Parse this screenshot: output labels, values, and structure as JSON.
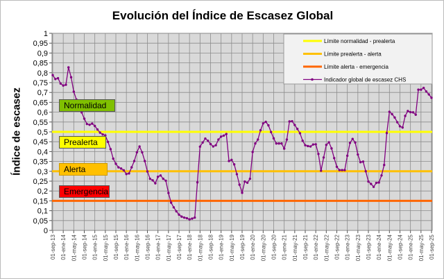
{
  "chart_data": {
    "type": "line",
    "title": "Evolución del Índice de Escasez Global",
    "ylabel": "Índice de escasez",
    "xlabel": "",
    "ylim": [
      0,
      1
    ],
    "yticks": [
      "0",
      "0,05",
      "0,1",
      "0,15",
      "0,2",
      "0,25",
      "0,3",
      "0,35",
      "0,4",
      "0,45",
      "0,5",
      "0,55",
      "0,6",
      "0,65",
      "0,7",
      "0,75",
      "0,8",
      "0,85",
      "0,9",
      "0,95",
      "1"
    ],
    "xticks": [
      "01-sep-13",
      "01-ene-14",
      "01-may-14",
      "01-sep-14",
      "01-ene-15",
      "01-may-15",
      "01-sep-15",
      "01-ene-16",
      "01-may-16",
      "01-sep-16",
      "01-ene-17",
      "01-may-17",
      "01-sep-17",
      "01-ene-18",
      "01-may-18",
      "01-sep-18",
      "01-ene-19",
      "01-may-19",
      "01-sep-19",
      "01-ene-20",
      "01-may-20",
      "01-sep-20",
      "01-ene-21",
      "01-may-21",
      "01-sep-21",
      "01-ene-22",
      "01-may-22",
      "01-sep-22",
      "01-ene-23",
      "01-may-23",
      "01-sep-23",
      "01-ene-24",
      "01-may-24",
      "01-sep-24",
      "01-ene-25",
      "01-may-25",
      "01-sep-25"
    ],
    "x_start": "2013-09",
    "x_frequency": "monthly",
    "grid": true,
    "legend_placement": "top-right",
    "thresholds": [
      {
        "name": "Límite normalidad - prealerta",
        "value": 0.5,
        "color": "#ffff00"
      },
      {
        "name": "Límite prealerta - alerta",
        "value": 0.3,
        "color": "#ffc000"
      },
      {
        "name": "Límite alerta - emergencia",
        "value": 0.15,
        "color": "#ff6600"
      }
    ],
    "series": [
      {
        "name": "Indicador global de escasez CHS",
        "color": "#800080",
        "values": [
          0.788,
          0.768,
          0.772,
          0.745,
          0.735,
          0.739,
          0.827,
          0.777,
          0.704,
          0.664,
          0.63,
          0.599,
          0.567,
          0.54,
          0.536,
          0.542,
          0.53,
          0.512,
          0.496,
          0.487,
          0.482,
          0.449,
          0.412,
          0.364,
          0.338,
          0.32,
          0.314,
          0.305,
          0.286,
          0.289,
          0.32,
          0.352,
          0.396,
          0.426,
          0.396,
          0.352,
          0.299,
          0.262,
          0.254,
          0.239,
          0.272,
          0.279,
          0.262,
          0.252,
          0.19,
          0.141,
          0.117,
          0.097,
          0.08,
          0.07,
          0.065,
          0.062,
          0.056,
          0.06,
          0.065,
          0.244,
          0.425,
          0.446,
          0.466,
          0.455,
          0.438,
          0.426,
          0.432,
          0.461,
          0.476,
          0.481,
          0.489,
          0.352,
          0.358,
          0.335,
          0.285,
          0.232,
          0.191,
          0.248,
          0.242,
          0.262,
          0.398,
          0.441,
          0.461,
          0.508,
          0.543,
          0.551,
          0.533,
          0.499,
          0.467,
          0.441,
          0.441,
          0.441,
          0.415,
          0.461,
          0.553,
          0.554,
          0.535,
          0.515,
          0.493,
          0.455,
          0.432,
          0.428,
          0.426,
          0.436,
          0.437,
          0.388,
          0.303,
          0.37,
          0.434,
          0.447,
          0.416,
          0.367,
          0.323,
          0.306,
          0.306,
          0.306,
          0.379,
          0.444,
          0.464,
          0.446,
          0.385,
          0.346,
          0.349,
          0.3,
          0.248,
          0.236,
          0.221,
          0.241,
          0.243,
          0.279,
          0.332,
          0.494,
          0.602,
          0.59,
          0.573,
          0.549,
          0.528,
          0.522,
          0.581,
          0.606,
          0.6,
          0.599,
          0.587,
          0.714,
          0.714,
          0.723,
          0.705,
          0.69,
          0.673
        ]
      }
    ],
    "level_labels": [
      {
        "text": "Normalidad",
        "color": "#80c000"
      },
      {
        "text": "Prealerta",
        "color": "#ffff00"
      },
      {
        "text": "Alerta",
        "color": "#ffc000"
      },
      {
        "text": "Emergencia",
        "color": "#ff0000"
      }
    ]
  }
}
